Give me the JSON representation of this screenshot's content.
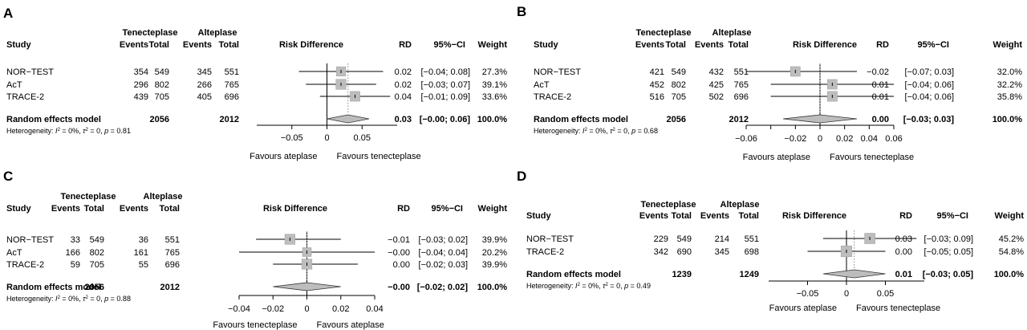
{
  "headers": {
    "study": "Study",
    "treat_group": "Tenecteplase",
    "ctrl_group": "Alteplase",
    "events": "Events",
    "total": "Total",
    "plot_title": "Risk Difference",
    "rd": "RD",
    "ci": "95%−CI",
    "weight": "Weight"
  },
  "chart_data": [
    {
      "type": "forest",
      "panel": "A",
      "studies": [
        {
          "name": "NOR−TEST",
          "t_events": "354",
          "t_total": "549",
          "c_events": "345",
          "c_total": "551",
          "rd": 0.02,
          "lo": -0.04,
          "hi": 0.08,
          "rd_text": "0.02",
          "ci_text": "[−0.04; 0.08]",
          "weight": 27.3,
          "weight_text": "27.3%"
        },
        {
          "name": "AcT",
          "t_events": "296",
          "t_total": "802",
          "c_events": "266",
          "c_total": "765",
          "rd": 0.02,
          "lo": -0.03,
          "hi": 0.07,
          "rd_text": "0.02",
          "ci_text": "[−0.03; 0.07]",
          "weight": 39.1,
          "weight_text": "39.1%"
        },
        {
          "name": "TRACE-2",
          "t_events": "439",
          "t_total": "705",
          "c_events": "405",
          "c_total": "696",
          "rd": 0.04,
          "lo": -0.01,
          "hi": 0.09,
          "rd_text": "0.04",
          "ci_text": "[−0.01; 0.09]",
          "weight": 33.6,
          "weight_text": "33.6%"
        }
      ],
      "pooled": {
        "label": "Random effects model",
        "t_total": "2056",
        "c_total": "2012",
        "rd": 0.03,
        "lo": -0.0,
        "hi": 0.06,
        "rd_text": "0.03",
        "ci_text": "[−0.00; 0.06]",
        "weight_text": "100.0%"
      },
      "heterogeneity": {
        "prefix": "Heterogeneity: ",
        "i2": "= 0%, ",
        "tau2": "= 0, ",
        "p": "= 0.81"
      },
      "axis": {
        "min": -0.1,
        "max": 0.1,
        "ticks": [
          -0.05,
          0,
          0.05
        ],
        "tick_labels": [
          "−0.05",
          "0",
          "0.05"
        ]
      },
      "favours_left": "Favours  ateplase",
      "favours_right": "Favours tenecteplase"
    },
    {
      "type": "forest",
      "panel": "B",
      "studies": [
        {
          "name": "NOR−TEST",
          "t_events": "421",
          "t_total": "549",
          "c_events": "432",
          "c_total": "551",
          "rd": -0.02,
          "lo": -0.07,
          "hi": 0.03,
          "rd_text": "−0.02",
          "ci_text": "[−0.07; 0.03]",
          "weight": 32.0,
          "weight_text": "32.0%"
        },
        {
          "name": "AcT",
          "t_events": "452",
          "t_total": "802",
          "c_events": "425",
          "c_total": "765",
          "rd": 0.01,
          "lo": -0.04,
          "hi": 0.06,
          "rd_text": "0.01",
          "ci_text": "[−0.04; 0.06]",
          "weight": 32.2,
          "weight_text": "32.2%"
        },
        {
          "name": "TRACE-2",
          "t_events": "516",
          "t_total": "705",
          "c_events": "502",
          "c_total": "696",
          "rd": 0.01,
          "lo": -0.04,
          "hi": 0.06,
          "rd_text": "0.01",
          "ci_text": "[−0.04; 0.06]",
          "weight": 35.8,
          "weight_text": "35.8%"
        }
      ],
      "pooled": {
        "label": "Random effects model",
        "t_total": "2056",
        "c_total": "2012",
        "rd": 0.0,
        "lo": -0.03,
        "hi": 0.03,
        "rd_text": "0.00",
        "ci_text": "[−0.03; 0.03]",
        "weight_text": "100.0%"
      },
      "heterogeneity": {
        "prefix": "Heterogeneity: ",
        "i2": "= 0%, ",
        "tau2": "= 0, ",
        "p": "= 0.68"
      },
      "axis": {
        "min": -0.06,
        "max": 0.06,
        "ticks": [
          -0.06,
          -0.04,
          -0.02,
          0,
          0.02,
          0.04,
          0.06
        ],
        "tick_labels": [
          "−0.06",
          "",
          "−0.02",
          "0",
          "0.02",
          "0.04",
          "0.06"
        ]
      },
      "favours_left": "Favours  ateplase",
      "favours_right": "Favours tenecteplase"
    },
    {
      "type": "forest",
      "panel": "C",
      "studies": [
        {
          "name": "NOR−TEST",
          "t_events": "33",
          "t_total": "549",
          "c_events": "36",
          "c_total": "551",
          "rd": -0.01,
          "lo": -0.03,
          "hi": 0.02,
          "rd_text": "−0.01",
          "ci_text": "[−0.03; 0.02]",
          "weight": 39.9,
          "weight_text": "39.9%"
        },
        {
          "name": "AcT",
          "t_events": "166",
          "t_total": "802",
          "c_events": "161",
          "c_total": "765",
          "rd": -0.0,
          "lo": -0.04,
          "hi": 0.04,
          "rd_text": "−0.00",
          "ci_text": "[−0.04; 0.04]",
          "weight": 20.2,
          "weight_text": "20.2%"
        },
        {
          "name": "TRACE-2",
          "t_events": "59",
          "t_total": "705",
          "c_events": "55",
          "c_total": "696",
          "rd": 0.0,
          "lo": -0.02,
          "hi": 0.03,
          "rd_text": "0.00",
          "ci_text": "[−0.02; 0.03]",
          "weight": 39.9,
          "weight_text": "39.9%"
        }
      ],
      "pooled": {
        "label": "Random effects model",
        "t_total": "2056",
        "c_total": "2012",
        "rd": -0.0,
        "lo": -0.02,
        "hi": 0.02,
        "rd_text": "−0.00",
        "ci_text": "[−0.02; 0.02]",
        "weight_text": "100.0%"
      },
      "heterogeneity": {
        "prefix": "Heterogeneity: ",
        "i2": "= 0%, ",
        "tau2": "= 0, ",
        "p": "= 0.88"
      },
      "axis": {
        "min": -0.04,
        "max": 0.04,
        "ticks": [
          -0.04,
          -0.02,
          0,
          0.02,
          0.04
        ],
        "tick_labels": [
          "−0.04",
          "−0.02",
          "0",
          "0.02",
          "0.04"
        ]
      },
      "favours_left": "Favours tenecteplase",
      "favours_right": "Favours ateplase"
    },
    {
      "type": "forest",
      "panel": "D",
      "studies": [
        {
          "name": "NOR−TEST",
          "t_events": "229",
          "t_total": "549",
          "c_events": "214",
          "c_total": "551",
          "rd": 0.03,
          "lo": -0.03,
          "hi": 0.09,
          "rd_text": "0.03",
          "ci_text": "[−0.03; 0.09]",
          "weight": 45.2,
          "weight_text": "45.2%"
        },
        {
          "name": "TRACE-2",
          "t_events": "342",
          "t_total": "690",
          "c_events": "345",
          "c_total": "698",
          "rd": 0.0,
          "lo": -0.05,
          "hi": 0.05,
          "rd_text": "0.00",
          "ci_text": "[−0.05; 0.05]",
          "weight": 54.8,
          "weight_text": "54.8%"
        }
      ],
      "pooled": {
        "label": "Random effects model",
        "t_total": "1239",
        "c_total": "1249",
        "rd": 0.01,
        "lo": -0.03,
        "hi": 0.05,
        "rd_text": "0.01",
        "ci_text": "[−0.03; 0.05]",
        "weight_text": "100.0%"
      },
      "heterogeneity": {
        "prefix": "Heterogeneity: ",
        "i2": "= 0%, ",
        "tau2": "= 0, ",
        "p": "= 0.49"
      },
      "axis": {
        "min": -0.1,
        "max": 0.1,
        "ticks": [
          -0.05,
          0,
          0.05
        ],
        "tick_labels": [
          "−0.05",
          "0",
          "0.05"
        ]
      },
      "favours_left": "Favours  ateplase",
      "favours_right": "Favours tenecteplase"
    }
  ]
}
